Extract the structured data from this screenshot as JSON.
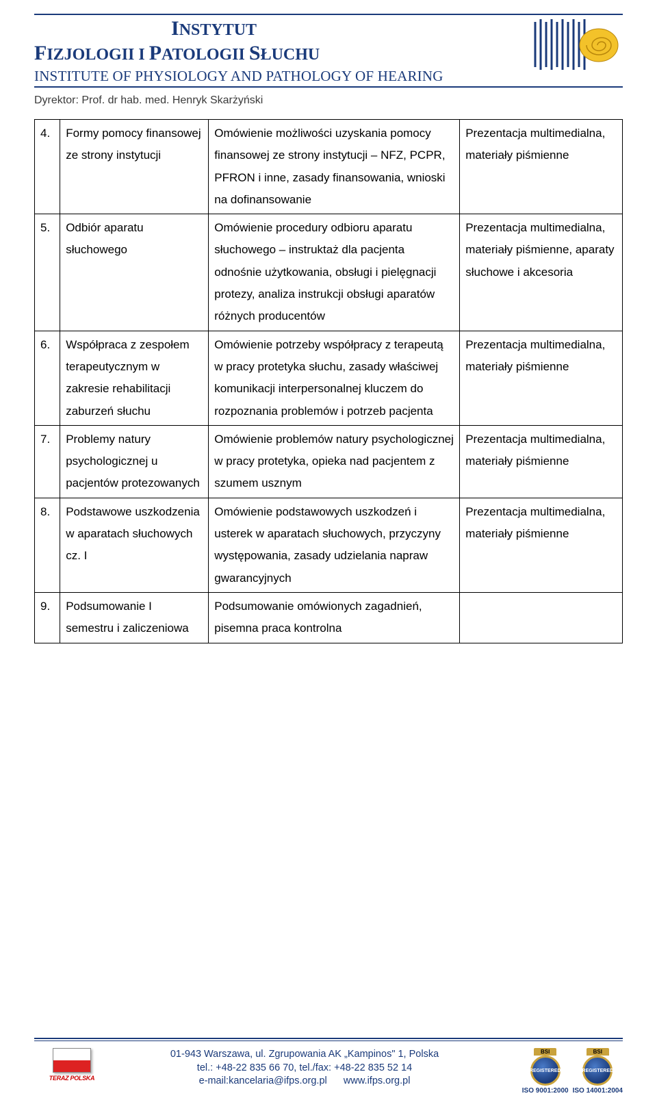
{
  "header": {
    "title_line1_parts": [
      "I",
      "NSTYTUT"
    ],
    "title_line2_parts": [
      "F",
      "IZJOLOGII  I  ",
      "P",
      "ATOLOGII  ",
      "S",
      "ŁUCHU"
    ],
    "subtitle": "INSTITUTE OF PHYSIOLOGY AND PATHOLOGY OF HEARING",
    "director": "Dyrektor: Prof. dr hab. med. Henryk Skarżyński",
    "colors": {
      "brand_blue": "#1a3a7a",
      "brand_yellow": "#f3c22a",
      "text": "#000000"
    }
  },
  "table": {
    "rows": [
      {
        "num": "4.",
        "topic": "Formy pomocy finansowej ze strony instytucji",
        "desc": "Omówienie możliwości uzyskania pomocy finansowej ze strony instytucji – NFZ, PCPR, PFRON i inne, zasady finansowania, wnioski na dofinansowanie",
        "media": "Prezentacja multimedialna, materiały piśmienne"
      },
      {
        "num": "5.",
        "topic": "Odbiór aparatu słuchowego",
        "desc": "Omówienie procedury odbioru aparatu słuchowego – instruktaż dla pacjenta odnośnie użytkowania, obsługi i pielęgnacji protezy, analiza instrukcji obsługi aparatów różnych producentów",
        "media": "Prezentacja multimedialna, materiały piśmienne, aparaty słuchowe i akcesoria"
      },
      {
        "num": "6.",
        "topic": "Współpraca z zespołem terapeutycznym w zakresie rehabilitacji zaburzeń słuchu",
        "desc": "Omówienie potrzeby współpracy z terapeutą w pracy protetyka słuchu, zasady właściwej komunikacji interpersonalnej kluczem do rozpoznania problemów i potrzeb pacjenta",
        "media": "Prezentacja multimedialna, materiały piśmienne"
      },
      {
        "num": "7.",
        "topic": "Problemy natury psychologicznej u pacjentów protezowanych",
        "desc": "Omówienie problemów natury psychologicznej w pracy protetyka, opieka nad pacjentem z szumem usznym",
        "media": "Prezentacja multimedialna, materiały piśmienne"
      },
      {
        "num": "8.",
        "topic": "Podstawowe uszkodzenia w aparatach słuchowych cz. I",
        "desc": "Omówienie podstawowych uszkodzeń i usterek w aparatach słuchowych, przyczyny występowania, zasady udzielania napraw gwarancyjnych",
        "media": "Prezentacja multimedialna, materiały piśmienne"
      },
      {
        "num": "9.",
        "topic": "Podsumowanie I semestru  i zaliczeniowa",
        "desc": "Podsumowanie omówionych zagadnień, pisemna praca kontrolna",
        "media": ""
      }
    ]
  },
  "footer": {
    "flag_label": "TERAZ POLSKA",
    "address": "01-943 Warszawa, ul. Zgrupowania AK „Kampinos\" 1, Polska",
    "phones": "tel.: +48-22 835 66 70, tel./fax: +48-22 835 52 14",
    "email_label": "e-mail:kancelaria@ifps.org.pl",
    "url": "www.ifps.org.pl",
    "bsi": "BSI",
    "iso1": "ISO 9001:2000",
    "iso2": "ISO 14001:2004"
  }
}
